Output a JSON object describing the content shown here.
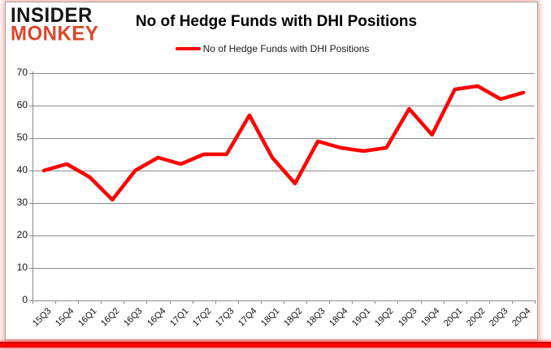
{
  "logo": {
    "line1": "INSIDER",
    "line2": "MONKEY"
  },
  "title": "No of Hedge Funds with DHI Positions",
  "legend": {
    "label": "No of Hedge Funds with DHI Positions"
  },
  "colors": {
    "line": "#ff0000",
    "logo_red": "#d9472b",
    "grid": "#8a8a8a",
    "bottom_bar": "#ff0000"
  },
  "chart_data": {
    "type": "line",
    "title": "No of Hedge Funds with DHI Positions",
    "categories": [
      "15Q3",
      "15Q4",
      "16Q1",
      "16Q2",
      "16Q3",
      "16Q4",
      "17Q1",
      "17Q2",
      "17Q3",
      "17Q4",
      "18Q1",
      "18Q2",
      "18Q3",
      "18Q4",
      "19Q1",
      "19Q2",
      "19Q3",
      "19Q4",
      "20Q1",
      "20Q2",
      "20Q3",
      "20Q4"
    ],
    "series": [
      {
        "name": "No of Hedge Funds with DHI Positions",
        "color": "#ff0000",
        "values": [
          40,
          42,
          38,
          31,
          40,
          44,
          42,
          45,
          45,
          57,
          44,
          36,
          49,
          47,
          46,
          47,
          59,
          51,
          65,
          66,
          62,
          64
        ]
      }
    ],
    "xlabel": "",
    "ylabel": "",
    "ylim": [
      0,
      70
    ],
    "yticks": [
      0,
      10,
      20,
      30,
      40,
      50,
      60,
      70
    ],
    "grid": "horizontal",
    "legend_position": "top"
  }
}
